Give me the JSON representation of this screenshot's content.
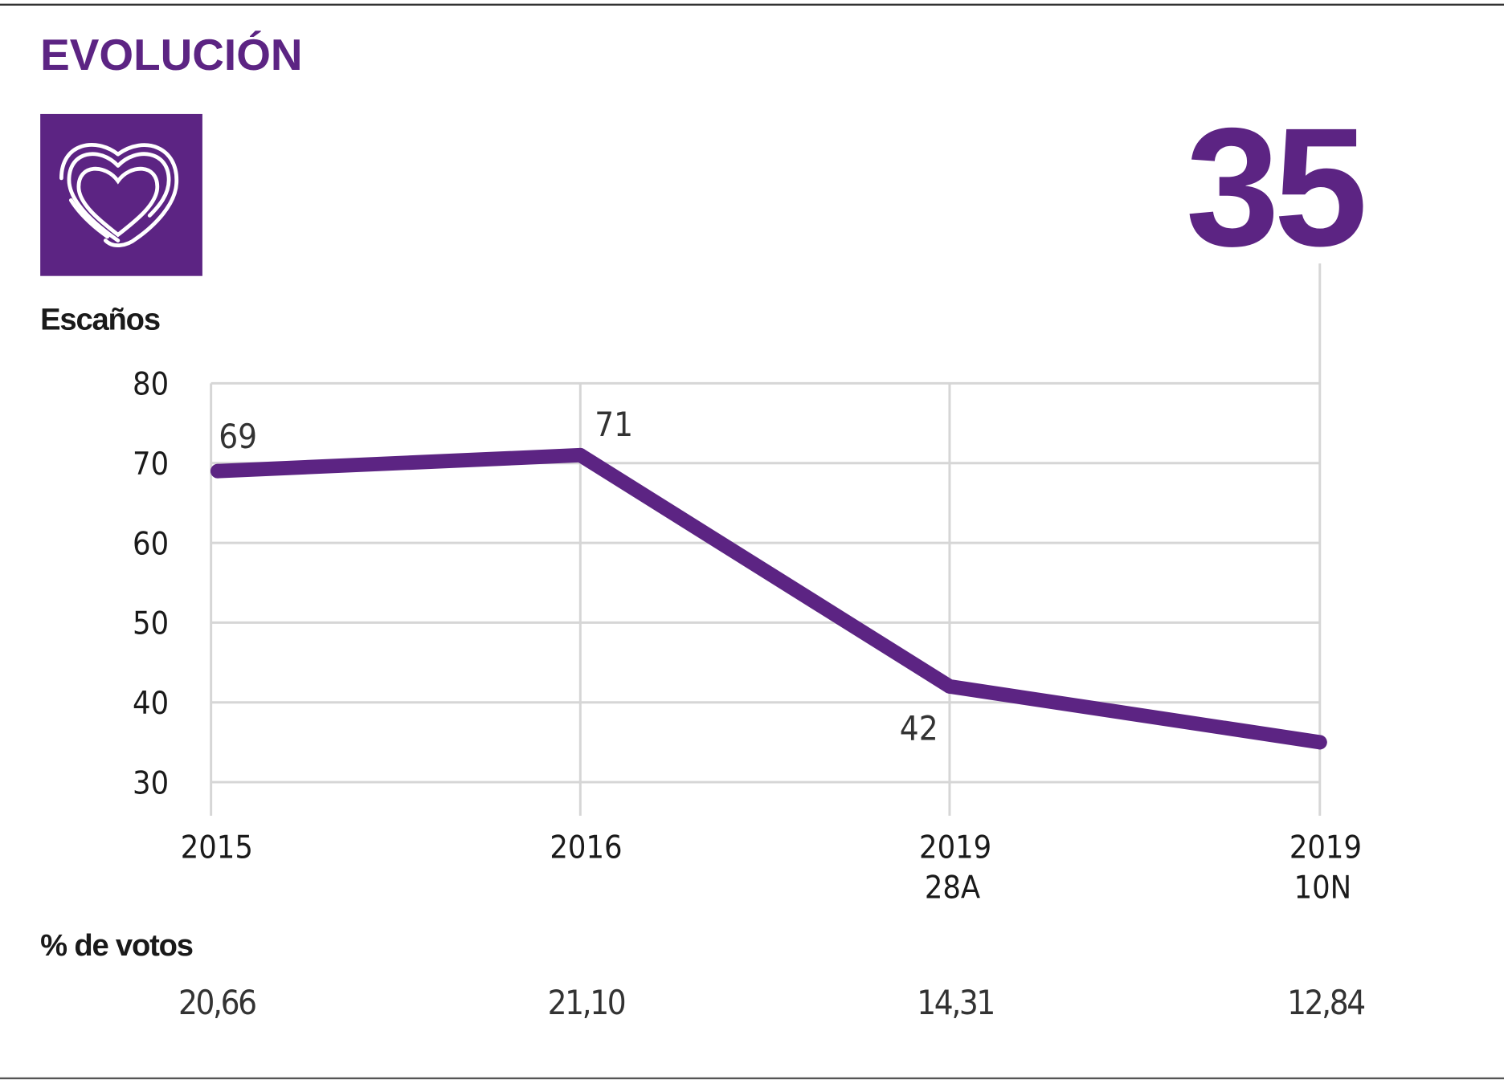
{
  "title": "EVOLUCIÓN",
  "icon": "heart-icon",
  "current_seats": "35",
  "colors": {
    "accent": "#5c2483",
    "grid": "#d6d6d6",
    "text": "#1a1a1a"
  },
  "chart_data": {
    "type": "line",
    "ylabel": "Escaños",
    "ylim": [
      30,
      80
    ],
    "yticks": [
      "80",
      "70",
      "60",
      "50",
      "40",
      "30"
    ],
    "grid": true,
    "categories": [
      [
        "2015",
        ""
      ],
      [
        "2016",
        ""
      ],
      [
        "2019",
        "28A"
      ],
      [
        "2019",
        "10N"
      ]
    ],
    "values": [
      69,
      71,
      42,
      35
    ],
    "data_labels": [
      "69",
      "71",
      "42",
      ""
    ]
  },
  "votes": {
    "label": "% de votos",
    "values": [
      "20,66",
      "21,10",
      "14,31",
      "12,84"
    ]
  }
}
